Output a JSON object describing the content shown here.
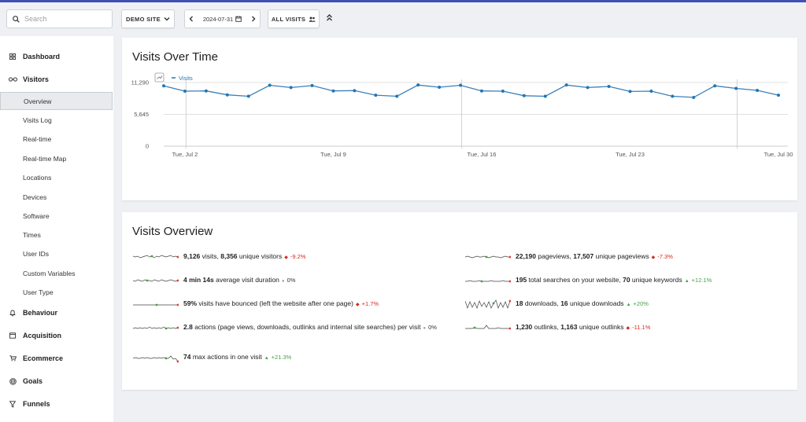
{
  "colors": {
    "accent": "#3f51b5",
    "series": "#1f78b4",
    "negative": "#d4291f",
    "positive": "#43a047"
  },
  "topbar": {
    "search_placeholder": "Search",
    "site_label": "DEMO SITE",
    "date": "2024-07-31",
    "segment_label": "ALL VISITS"
  },
  "sidebar": {
    "categories": {
      "dashboard": "Dashboard",
      "visitors": "Visitors",
      "behaviour": "Behaviour",
      "acquisition": "Acquisition",
      "ecommerce": "Ecommerce",
      "goals": "Goals",
      "funnels": "Funnels"
    },
    "visitor_items": [
      "Overview",
      "Visits Log",
      "Real-time",
      "Real-time Map",
      "Locations",
      "Devices",
      "Software",
      "Times",
      "User IDs",
      "Custom Variables",
      "User Type"
    ]
  },
  "visits_over_time": {
    "title": "Visits Over Time",
    "chart_data": {
      "type": "line",
      "title": "Visits Over Time",
      "xlabel": "",
      "ylabel": "",
      "ylim": [
        0,
        11290
      ],
      "yticks": [
        "11,290",
        "5,645",
        "0"
      ],
      "xtick_labels": [
        "Tue, Jul 2",
        "Tue, Jul 9",
        "Tue, Jul 16",
        "Tue, Jul 23",
        "Tue, Jul 30"
      ],
      "xtick_indices": [
        1,
        8,
        15,
        22,
        29
      ],
      "legend": "Visits",
      "series": [
        {
          "name": "Visits",
          "values": [
            10700,
            9750,
            9800,
            9100,
            8850,
            10800,
            10400,
            10750,
            9800,
            9850,
            9050,
            8850,
            10850,
            10450,
            10800,
            9800,
            9750,
            8950,
            8850,
            10850,
            10400,
            10600,
            9700,
            9750,
            8850,
            8650,
            10700,
            10250,
            9900,
            9050
          ]
        }
      ]
    }
  },
  "visits_overview": {
    "title": "Visits Overview",
    "left": [
      {
        "parts": [
          {
            "b": "9,126"
          },
          {
            "t": " visits, "
          },
          {
            "b": "8,356"
          },
          {
            "t": " unique visitors"
          }
        ],
        "delta": "-9.2%",
        "trend": "neg"
      },
      {
        "parts": [
          {
            "b": "4 min 14s"
          },
          {
            "t": " average visit duration"
          }
        ],
        "delta": "0%",
        "trend": "neu"
      },
      {
        "parts": [
          {
            "b": "59%"
          },
          {
            "t": " visits have bounced (left the website after one page)"
          }
        ],
        "delta": "+1.7%",
        "trend": "neg"
      },
      {
        "parts": [
          {
            "b": "2.8"
          },
          {
            "t": " actions (page views, downloads, outlinks and internal site searches) per visit"
          }
        ],
        "delta": "0%",
        "trend": "neu"
      },
      {
        "parts": [
          {
            "b": "74"
          },
          {
            "t": " max actions in one visit"
          }
        ],
        "delta": "+21.3%",
        "trend": "pos"
      }
    ],
    "right": [
      {
        "parts": [
          {
            "b": "22,190"
          },
          {
            "t": " pageviews, "
          },
          {
            "b": "17,507"
          },
          {
            "t": " unique pageviews"
          }
        ],
        "delta": "-7.3%",
        "trend": "neg"
      },
      {
        "parts": [
          {
            "b": "195"
          },
          {
            "t": " total searches on your website, "
          },
          {
            "b": "70"
          },
          {
            "t": " unique keywords"
          }
        ],
        "delta": "+12.1%",
        "trend": "pos"
      },
      {
        "parts": [
          {
            "b": "18"
          },
          {
            "t": " downloads, "
          },
          {
            "b": "16"
          },
          {
            "t": " unique downloads"
          }
        ],
        "delta": "+20%",
        "trend": "pos"
      },
      {
        "parts": [
          {
            "b": "1,230"
          },
          {
            "t": " outlinks, "
          },
          {
            "b": "1,163"
          },
          {
            "t": " unique outlinks"
          }
        ],
        "delta": "-11.1%",
        "trend": "neg"
      }
    ]
  }
}
